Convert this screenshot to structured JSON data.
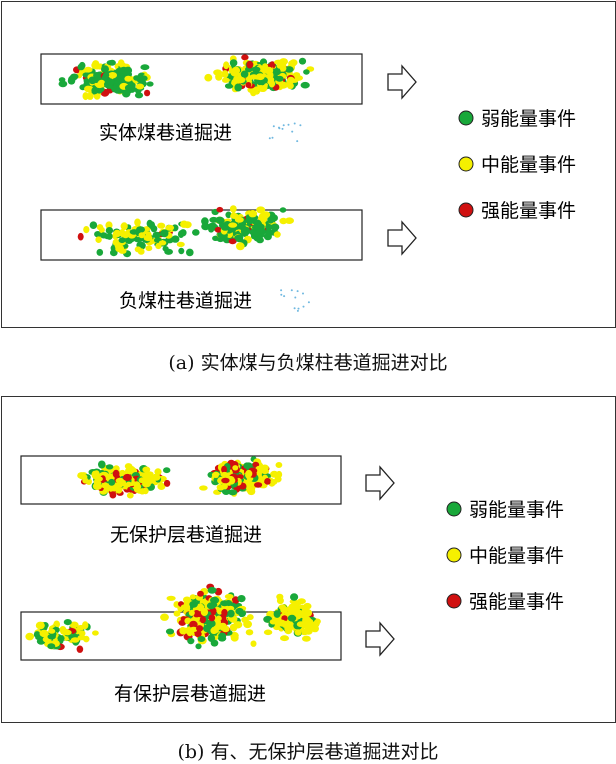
{
  "legend": {
    "weak": "弱能量事件",
    "medium": "中能量事件",
    "strong": "强能量事件"
  },
  "colors": {
    "weak": "#19a83a",
    "medium": "#f5f000",
    "strong": "#d01010",
    "micro": "#6fb8e0"
  },
  "panel_a": {
    "caption": "(a)  实体煤与负煤柱巷道掘进对比",
    "top_label": "实体煤巷道掘进",
    "bottom_label": "负煤柱巷道掘进"
  },
  "panel_b": {
    "caption": "(b)  有、无保护层巷道掘进对比",
    "top_label": "无保护层巷道掘进",
    "bottom_label": "有保护层巷道掘进"
  }
}
